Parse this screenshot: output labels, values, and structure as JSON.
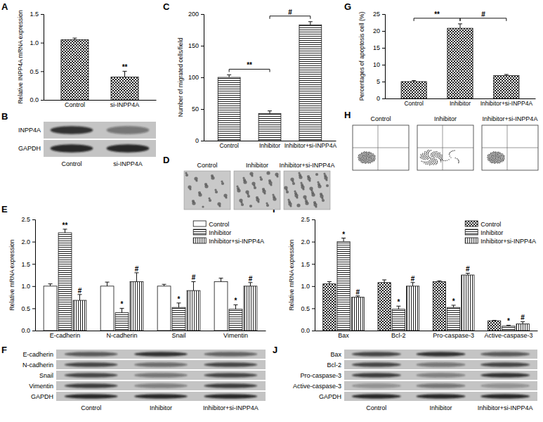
{
  "panel_labels": [
    "A",
    "B",
    "C",
    "D",
    "E",
    "F",
    "G",
    "H",
    "I",
    "J"
  ],
  "chart_data": [
    {
      "type": "bar",
      "y_label": "Relative INPP4A mRNA expression",
      "categories": [
        "Control",
        "si-INPP4A"
      ],
      "values": [
        1.05,
        0.4
      ],
      "errors": [
        0.03,
        0.1
      ],
      "annotations": [
        null,
        "**"
      ],
      "ylim": [
        0,
        1.5
      ],
      "yticks": [
        {
          "value": 0,
          "label": "0.0"
        },
        {
          "value": 0.5,
          "label": "0.5"
        },
        {
          "value": 1,
          "label": "1.0"
        },
        {
          "value": 1.5,
          "label": "1.5"
        }
      ]
    },
    {
      "type": "bar",
      "y_label": "Number of migrated cells/field",
      "categories": [
        "Control",
        "Inhibitor",
        "Inhibitor+si-INPP4A"
      ],
      "values": [
        100,
        43,
        183
      ],
      "errors": [
        4,
        4,
        5
      ],
      "brackets": [
        {
          "from": "Control",
          "to": "Inhibitor",
          "text": "**"
        },
        {
          "from": "Inhibitor",
          "to": "Inhibitor+si-INPP4A",
          "text": "#"
        }
      ],
      "ylim": [
        0,
        200
      ],
      "yticks": [
        0,
        50,
        100,
        150,
        200
      ]
    },
    {
      "type": "bar",
      "y_label": "Relative mRNA expression",
      "categories": [
        "E-cadherin",
        "N-cadherin",
        "Snail",
        "Vimentin"
      ],
      "series": [
        {
          "name": "Control",
          "values": [
            1.0,
            1.0,
            1.0,
            1.1
          ],
          "errors": [
            0.05,
            0.09,
            0.04,
            0.08
          ]
        },
        {
          "name": "Inhibitor",
          "values": [
            2.2,
            0.4,
            0.52,
            0.48
          ],
          "errors": [
            0.08,
            0.1,
            0.1,
            0.1
          ],
          "annotations": [
            "**",
            "*",
            "*",
            "*"
          ]
        },
        {
          "name": "Inhibitor+si-INPP4A",
          "values": [
            0.68,
            1.1,
            0.9,
            1.0
          ],
          "errors": [
            0.13,
            0.2,
            0.2,
            0.08
          ],
          "annotations": [
            "#",
            "#",
            "#",
            "#"
          ]
        }
      ],
      "legend": "top-right",
      "ylim": [
        0,
        2.5
      ],
      "yticks": [
        {
          "value": 0,
          "label": "0.0"
        },
        {
          "value": 0.5,
          "label": "0.5"
        },
        {
          "value": 1,
          "label": "1.0"
        },
        {
          "value": 1.5,
          "label": "1.5"
        },
        {
          "value": 2,
          "label": "2.0"
        },
        {
          "value": 2.5,
          "label": "2.5"
        }
      ]
    },
    {
      "type": "bar",
      "y_label": "Percentages of apoptosis cell (%)",
      "categories": [
        "Control",
        "Inhibitor",
        "Inhibitor+si-INPP4A"
      ],
      "values": [
        5.0,
        20.8,
        6.8
      ],
      "errors": [
        0.3,
        1.3,
        0.3
      ],
      "brackets": [
        {
          "from": "Control",
          "to": "Inhibitor",
          "text": "**"
        },
        {
          "from": "Inhibitor",
          "to": "Inhibitor+si-INPP4A",
          "text": "#"
        }
      ],
      "ylim": [
        0,
        25
      ],
      "yticks": [
        0,
        5,
        10,
        15,
        20,
        25
      ]
    },
    {
      "type": "bar",
      "y_label": "Relative mRNA expression",
      "categories": [
        "Bax",
        "Bcl-2",
        "Pro-caspase-3",
        "Active-caspase-3"
      ],
      "series": [
        {
          "name": "Control",
          "values": [
            1.05,
            1.08,
            1.1,
            0.22
          ],
          "errors": [
            0.05,
            0.06,
            0.02,
            0.01
          ]
        },
        {
          "name": "Inhibitor",
          "values": [
            2.0,
            0.48,
            0.52,
            0.1
          ],
          "errors": [
            0.08,
            0.07,
            0.05,
            0.02
          ],
          "annotations": [
            "*",
            "*",
            "*",
            "*"
          ]
        },
        {
          "name": "Inhibitor+si-INPP4A",
          "values": [
            0.75,
            1.0,
            1.25,
            0.15
          ],
          "errors": [
            0.03,
            0.08,
            0.04,
            0.05
          ],
          "annotations": [
            "#",
            "#",
            "#",
            "#"
          ]
        }
      ],
      "legend": "top-right",
      "ylim": [
        0,
        2.5
      ],
      "yticks": [
        {
          "value": 0,
          "label": "0.0"
        },
        {
          "value": 0.5,
          "label": "0.5"
        },
        {
          "value": 1,
          "label": "1.0"
        },
        {
          "value": 1.5,
          "label": "1.5"
        },
        {
          "value": 2,
          "label": "2.0"
        },
        {
          "value": 2.5,
          "label": "2.5"
        }
      ]
    }
  ],
  "blots": [
    {
      "rows": [
        "INPP4A",
        "GAPDH"
      ],
      "lanes": [
        "Control",
        "si-INPP4A"
      ],
      "intensity": [
        [
          0.8,
          0.45
        ],
        [
          0.9,
          0.9
        ]
      ]
    },
    {
      "rows": [
        "E-cadherin",
        "N-cadherin",
        "Snail",
        "Vimentin",
        "GAPDH"
      ],
      "lanes": [
        "Control",
        "Inhibitor",
        "Inhibitor+si-INPP4A"
      ],
      "intensity": [
        [
          0.6,
          0.85,
          0.55
        ],
        [
          0.7,
          0.5,
          0.7
        ],
        [
          0.7,
          0.45,
          0.7
        ],
        [
          0.75,
          0.4,
          0.75
        ],
        [
          0.9,
          0.9,
          0.9
        ]
      ]
    },
    {
      "rows": [
        "Bax",
        "Bcl-2",
        "Pro-caspase-3",
        "Active-caspase-3",
        "GAPDH"
      ],
      "lanes": [
        "Control",
        "Inhibitor",
        "Inhibitor+si-INPP4A"
      ],
      "intensity": [
        [
          0.7,
          0.85,
          0.6
        ],
        [
          0.7,
          0.45,
          0.7
        ],
        [
          0.75,
          0.4,
          0.8
        ],
        [
          0.3,
          0.45,
          0.3
        ],
        [
          0.9,
          0.9,
          0.9
        ]
      ]
    }
  ],
  "micrographs": {
    "labels": [
      "Control",
      "Inhibitor",
      "Inhibitor+si-INPP4A"
    ]
  },
  "flow_cytometry": {
    "labels": [
      "Control",
      "Inhibitor",
      "Inhibitor+si-INPP4A"
    ]
  }
}
